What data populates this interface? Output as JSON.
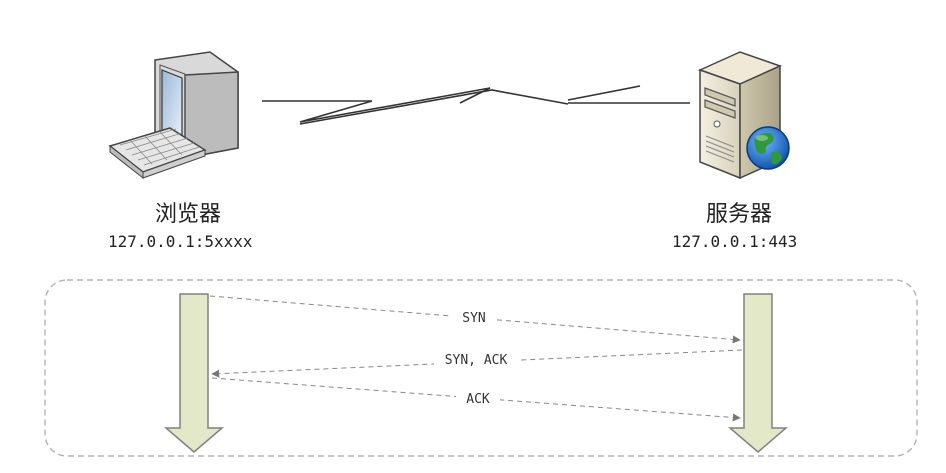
{
  "client": {
    "label": "浏览器",
    "address": "127.0.0.1:5xxxx",
    "icon": "desktop-computer-icon"
  },
  "server": {
    "label": "服务器",
    "address": "127.0.0.1:443",
    "icon": "server-tower-icon"
  },
  "link_icon": "network-lightning-link-icon",
  "handshake": {
    "messages": [
      {
        "label": "SYN",
        "direction": "client-to-server"
      },
      {
        "label": "SYN, ACK",
        "direction": "server-to-client"
      },
      {
        "label": "ACK",
        "direction": "client-to-server"
      }
    ]
  },
  "colors": {
    "timeline_fill": "#e3e8c9",
    "timeline_stroke": "#808080",
    "frame_stroke": "#b3b3b3",
    "message_stroke": "#888888",
    "globe_blue": "#1f6fd1",
    "globe_green": "#2e9a3a"
  }
}
